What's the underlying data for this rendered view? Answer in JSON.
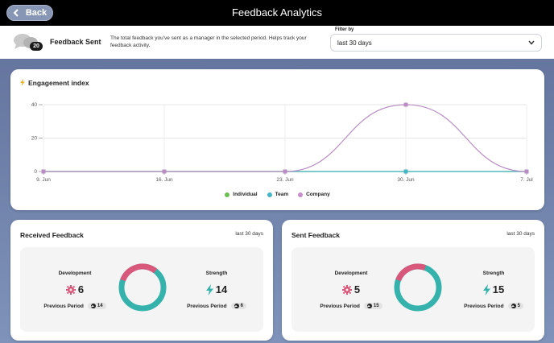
{
  "header": {
    "back_label": "Back",
    "title": "Feedback Analytics"
  },
  "summary": {
    "count": "20",
    "label": "Feedback Sent",
    "description": "The total feedback you've sent as a manager in the selected period. Helps track your feedback activity."
  },
  "filter": {
    "label": "Filter by",
    "selected": "last 30 days"
  },
  "engagement": {
    "title": "Engagement index",
    "legend": [
      {
        "name": "Individual",
        "color": "#6cbf4f"
      },
      {
        "name": "Team",
        "color": "#45b5c6"
      },
      {
        "name": "Company",
        "color": "#c98ccc"
      }
    ]
  },
  "chart_data": {
    "type": "line",
    "title": "Engagement index",
    "x": [
      "9. Jun",
      "16. Jun",
      "23. Jun",
      "30. Jun",
      "7. Jul"
    ],
    "yticks": [
      "0",
      "20",
      "40"
    ],
    "ylim": [
      0,
      40
    ],
    "series": [
      {
        "name": "Individual",
        "color": "#6cbf4f",
        "values": [
          0,
          0,
          0,
          0,
          0
        ]
      },
      {
        "name": "Team",
        "color": "#45b5c6",
        "values": [
          0,
          0,
          0,
          0,
          0
        ]
      },
      {
        "name": "Company",
        "color": "#b98cc4",
        "values": [
          0,
          0,
          0,
          40,
          0
        ]
      }
    ],
    "grid": true,
    "legend_position": "bottom"
  },
  "received": {
    "title": "Received Feedback",
    "period": "last 30 days",
    "development": {
      "label": "Development",
      "value": "6",
      "prev_label": "Previous Period",
      "prev_value": "14",
      "fraction": 0.3
    },
    "strength": {
      "label": "Strength",
      "value": "14",
      "prev_label": "Previous Period",
      "prev_value": "6",
      "fraction": 0.7
    }
  },
  "sent": {
    "title": "Sent Feedback",
    "period": "last 30 days",
    "development": {
      "label": "Development",
      "value": "5",
      "prev_label": "Previous Period",
      "prev_value": "15",
      "fraction": 0.25
    },
    "strength": {
      "label": "Strength",
      "value": "15",
      "prev_label": "Previous Period",
      "prev_value": "5",
      "fraction": 0.75
    }
  },
  "colors": {
    "development": "#d9577a",
    "strength": "#36b2ad"
  }
}
